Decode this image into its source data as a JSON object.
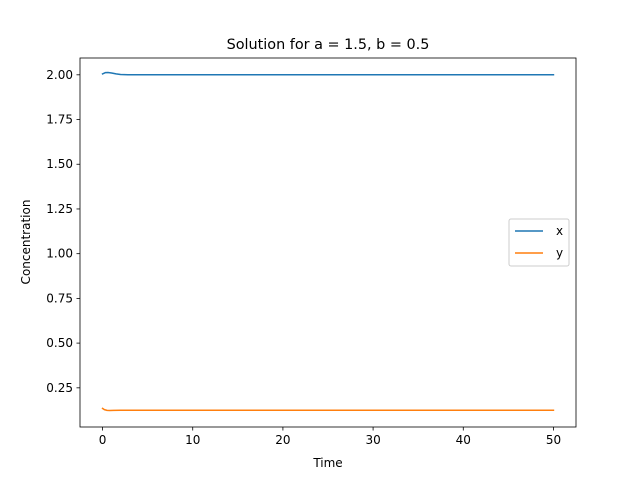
{
  "chart_data": {
    "type": "line",
    "title": "Solution for a = 1.5, b = 0.5",
    "xlabel": "Time",
    "ylabel": "Concentration",
    "xlim": [
      -2.5,
      52.5
    ],
    "ylim": [
      0.031,
      2.094
    ],
    "xticks": [
      0,
      10,
      20,
      30,
      40,
      50
    ],
    "yticks": [
      0.25,
      0.5,
      0.75,
      1.0,
      1.25,
      1.5,
      1.75,
      2.0
    ],
    "xtick_labels": [
      "0",
      "10",
      "20",
      "30",
      "40",
      "50"
    ],
    "ytick_labels": [
      "0.25",
      "0.50",
      "0.75",
      "1.00",
      "1.25",
      "1.50",
      "1.75",
      "2.00"
    ],
    "grid": false,
    "legend_position": "center-right",
    "series": [
      {
        "name": "x",
        "color": "#1f77b4",
        "x": [
          0,
          0.3,
          0.6,
          1.0,
          1.5,
          2.0,
          3.0,
          4.0,
          5.0,
          10,
          20,
          30,
          40,
          50
        ],
        "y": [
          2.005,
          2.012,
          2.013,
          2.01,
          2.005,
          2.002,
          2.0,
          2.0,
          2.0,
          2.0,
          2.0,
          2.0,
          2.0,
          2.0
        ]
      },
      {
        "name": "y",
        "color": "#ff7f0e",
        "x": [
          0,
          0.2,
          0.5,
          0.8,
          1.2,
          2.0,
          3.0,
          5.0,
          10,
          20,
          30,
          40,
          50
        ],
        "y": [
          0.135,
          0.128,
          0.124,
          0.123,
          0.124,
          0.125,
          0.125,
          0.125,
          0.125,
          0.125,
          0.125,
          0.125,
          0.125
        ]
      }
    ]
  }
}
